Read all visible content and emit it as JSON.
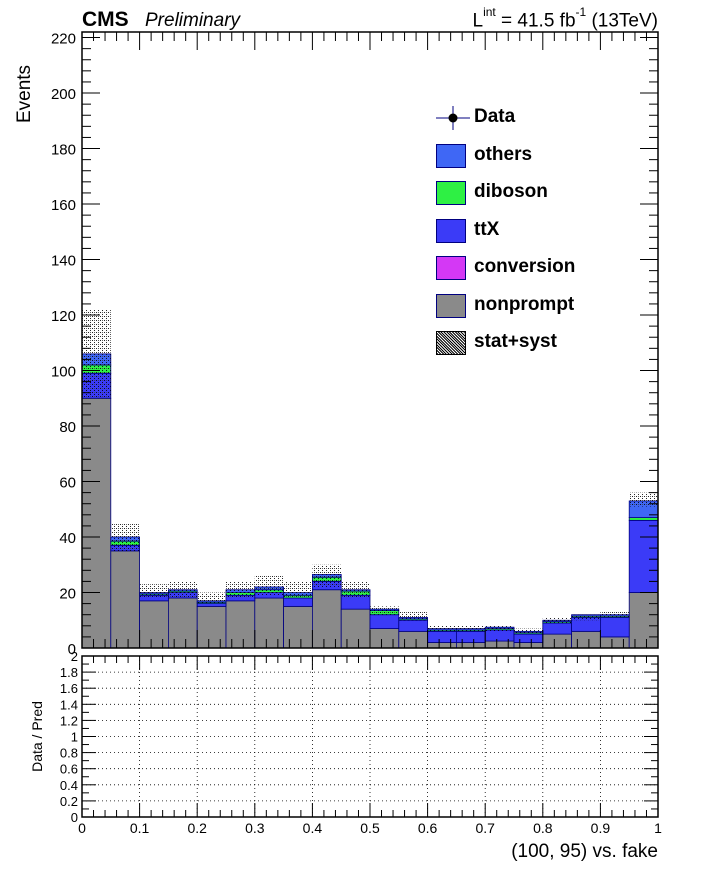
{
  "header": {
    "experiment": "CMS",
    "status": "Preliminary",
    "lumi_prefix": "L",
    "lumi_sup": "int",
    "lumi_value": " = 41.5 fb",
    "lumi_unit_sup": "-1",
    "lumi_suffix": " (13TeV)"
  },
  "legend": {
    "entries": [
      {
        "label": "Data",
        "style": "marker",
        "color": "#000000"
      },
      {
        "label": "others",
        "style": "fill",
        "color": "#3f67f5"
      },
      {
        "label": "diboson",
        "style": "fill",
        "color": "#2ef044"
      },
      {
        "label": "ttX",
        "style": "fill",
        "color": "#3b3bf7"
      },
      {
        "label": "conversion",
        "style": "fill",
        "color": "#d438f5"
      },
      {
        "label": "nonprompt",
        "style": "fill",
        "color": "#8a8a8a"
      },
      {
        "label": "stat+syst",
        "style": "hatch",
        "color": "#000000"
      }
    ]
  },
  "chart_data": [
    {
      "type": "bar",
      "stacked": true,
      "ylabel": "Events",
      "xlabel": "",
      "xlim": [
        0,
        1
      ],
      "ylim": [
        0,
        222
      ],
      "yticks": [
        0,
        20,
        40,
        60,
        80,
        100,
        120,
        140,
        160,
        180,
        200,
        220
      ],
      "bin_edges": [
        0,
        0.05,
        0.1,
        0.15,
        0.2,
        0.25,
        0.3,
        0.35,
        0.4,
        0.45,
        0.5,
        0.55,
        0.6,
        0.65,
        0.7,
        0.75,
        0.8,
        0.85,
        0.9,
        0.95,
        1.0
      ],
      "series": [
        {
          "name": "nonprompt",
          "color": "#8a8a8a",
          "values": [
            90,
            35,
            17,
            18,
            15,
            17,
            18,
            15,
            21,
            14,
            7,
            6,
            2,
            2,
            2.5,
            2,
            5,
            6,
            4,
            20
          ]
        },
        {
          "name": "conversion",
          "color": "#d438f5",
          "values": [
            0,
            0,
            0,
            0,
            0,
            0,
            0,
            0,
            0,
            0,
            0,
            0,
            0,
            0,
            0,
            0,
            0,
            0,
            0,
            0
          ]
        },
        {
          "name": "ttX",
          "color": "#3b3bf7",
          "values": [
            9,
            2,
            2,
            2,
            1,
            2,
            2,
            3,
            3,
            5,
            5,
            4,
            4,
            4,
            4,
            3,
            4,
            5,
            7,
            26
          ]
        },
        {
          "name": "diboson",
          "color": "#2ef044",
          "values": [
            3,
            1.5,
            0.5,
            0.5,
            0.5,
            1,
            1,
            1,
            1.5,
            1.5,
            1.5,
            0.5,
            0.5,
            0.5,
            0.5,
            0.5,
            0.5,
            0.5,
            0.5,
            1
          ]
        },
        {
          "name": "others",
          "color": "#3f67f5",
          "values": [
            4,
            1.5,
            0.5,
            0.5,
            0.5,
            1,
            1,
            1,
            1,
            0.5,
            0.5,
            0.5,
            0.5,
            0.5,
            0.5,
            0.5,
            0.5,
            0.5,
            0.5,
            6
          ]
        }
      ],
      "uncertainty_band": {
        "name": "stat+syst",
        "low": [
          90,
          35,
          18,
          18,
          16,
          18,
          19,
          18,
          22,
          18,
          12,
          10,
          6,
          6,
          6,
          5,
          9,
          10,
          11,
          51
        ],
        "high": [
          122,
          45,
          23,
          24,
          20,
          24,
          26,
          24,
          30,
          24,
          15,
          13,
          8,
          8,
          8,
          7,
          11,
          12,
          13,
          56
        ]
      },
      "legend_position": "right"
    },
    {
      "type": "line",
      "ylabel": "Data / Pred",
      "xlabel": "(100, 95) vs. fake",
      "xlim": [
        0,
        1
      ],
      "ylim": [
        0,
        2
      ],
      "xticks": [
        "0",
        "0.1",
        "0.2",
        "0.3",
        "0.4",
        "0.5",
        "0.6",
        "0.7",
        "0.8",
        "0.9",
        "1"
      ],
      "yticks": [
        "0",
        "0.2",
        "0.4",
        "0.6",
        "0.8",
        "1",
        "1.2",
        "1.4",
        "1.6",
        "1.8",
        "2"
      ],
      "grid": true,
      "series": []
    }
  ]
}
